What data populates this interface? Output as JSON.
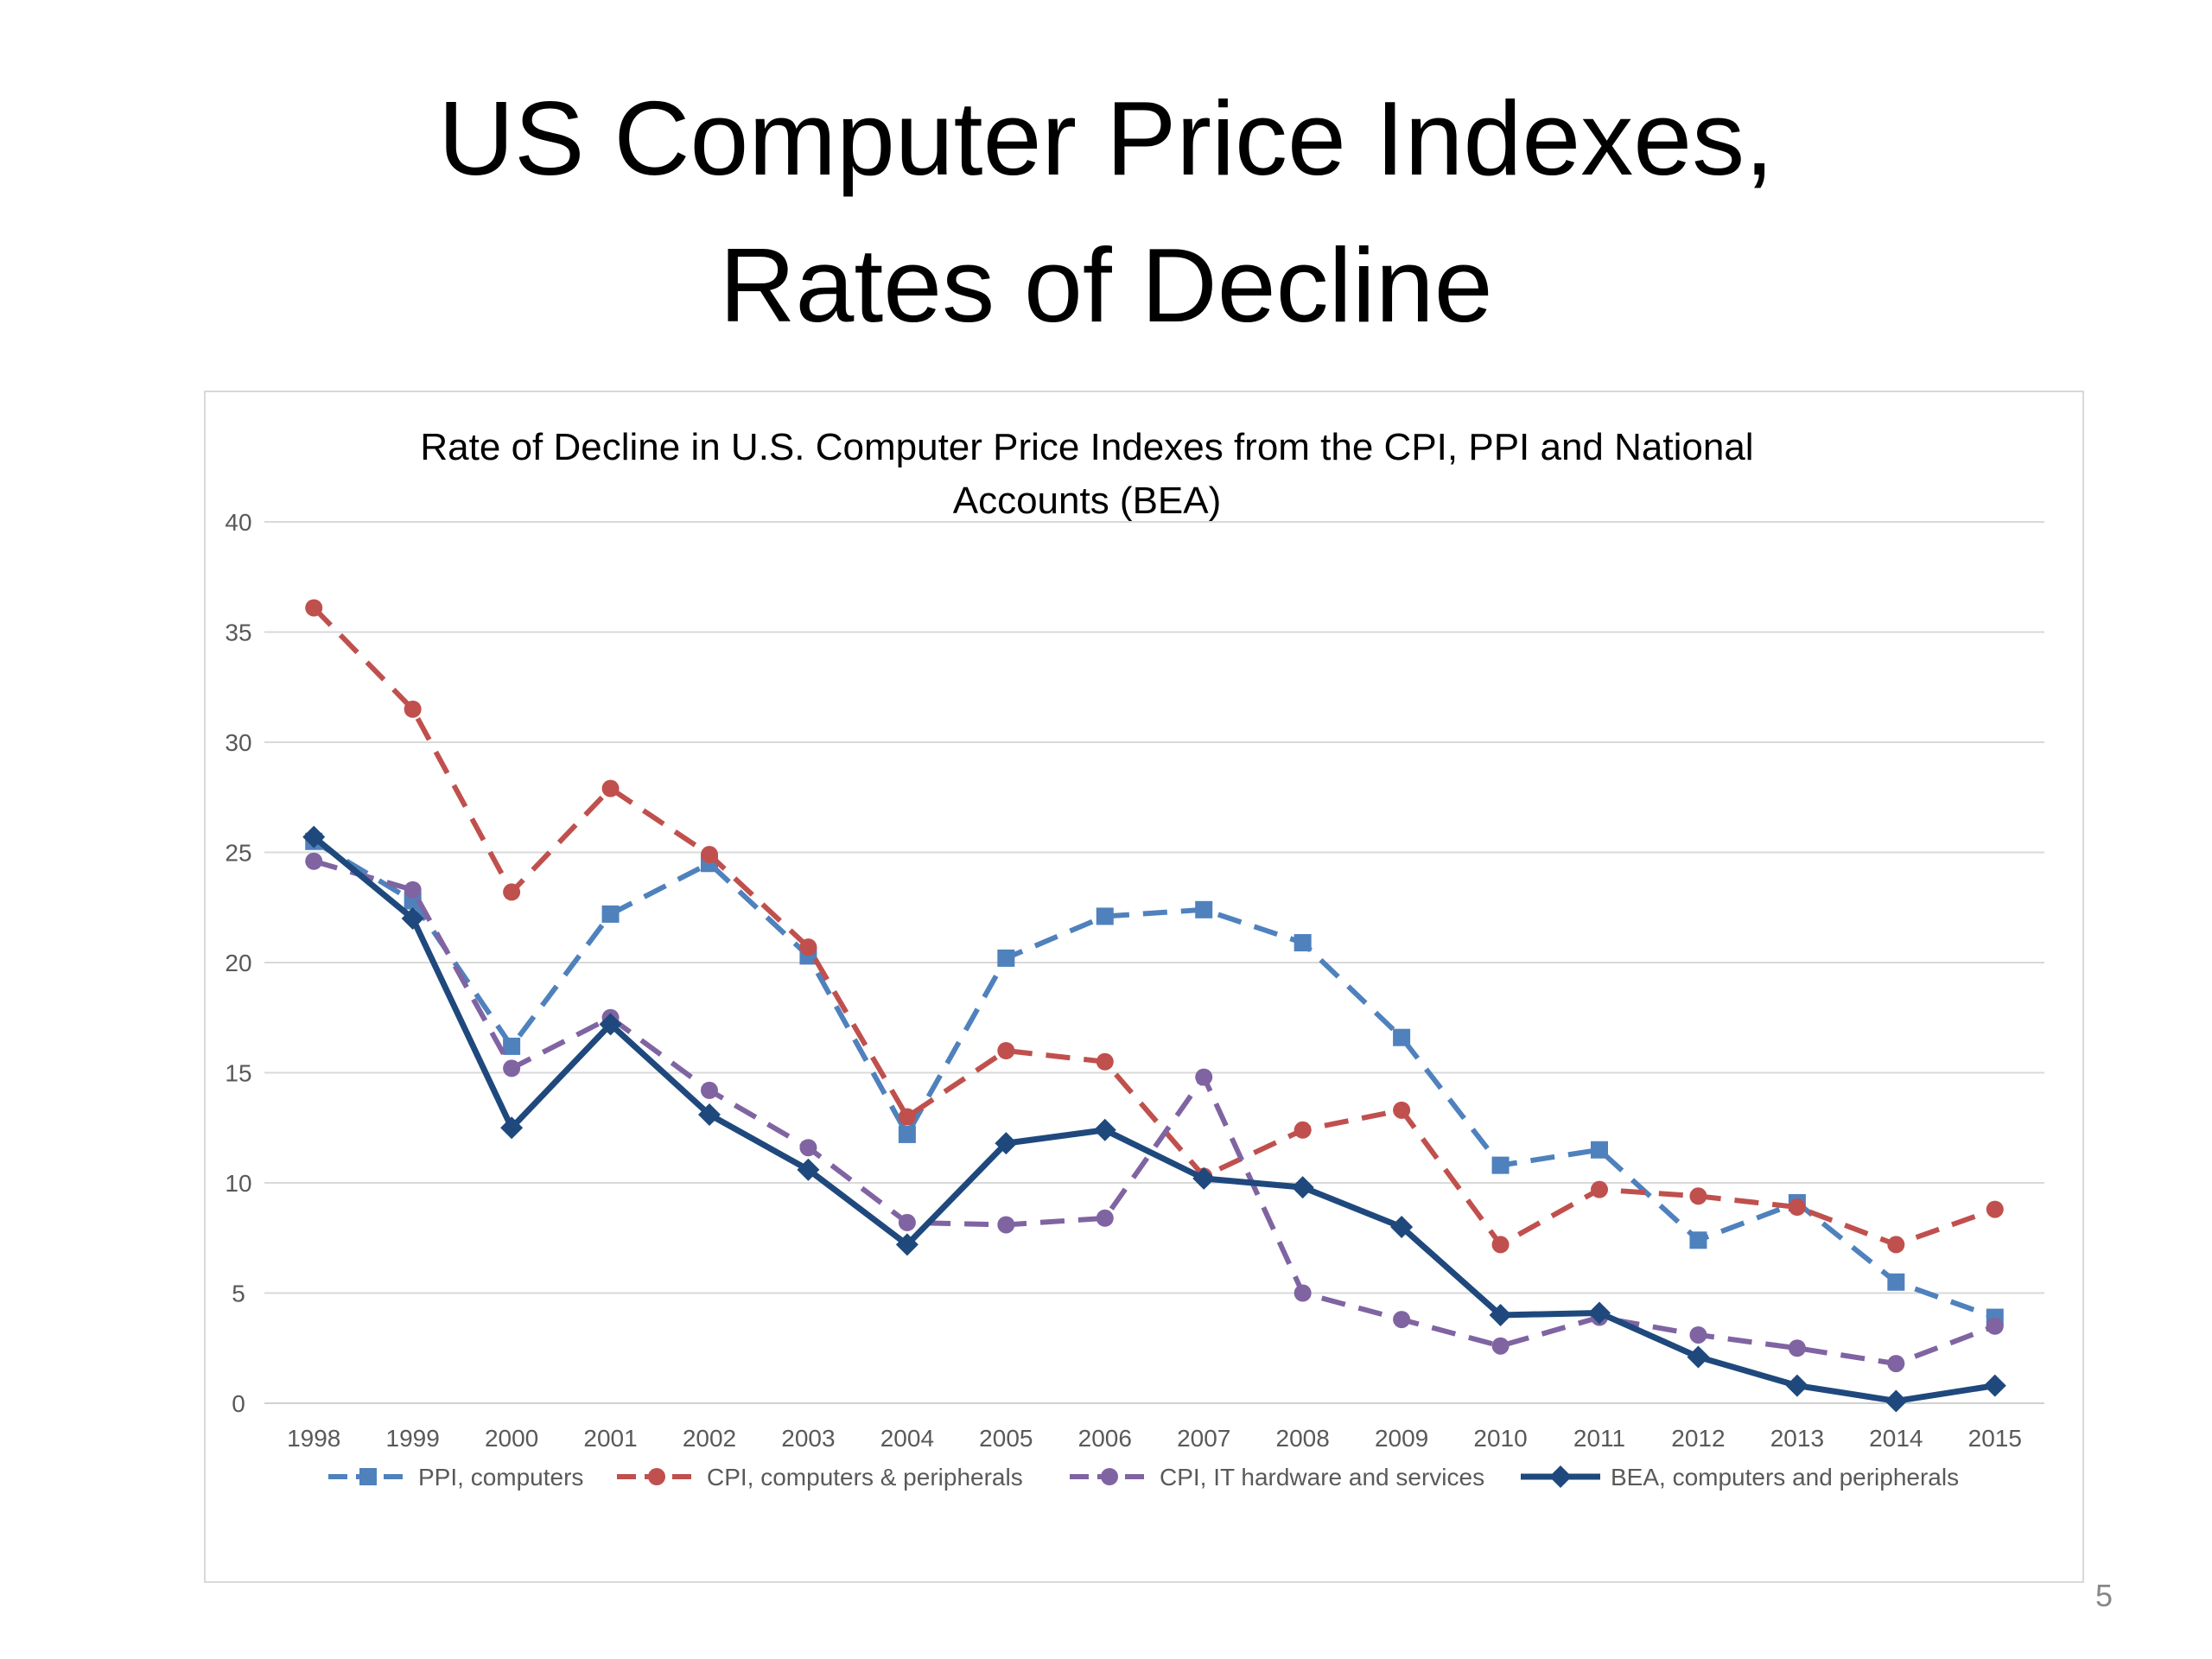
{
  "slide": {
    "title_line1": "US Computer Price Indexes,",
    "title_line2": "Rates of Decline",
    "page_number": "5"
  },
  "chart_data": {
    "type": "line",
    "title": "Rate of Decline in U.S. Computer Price Indexes from the CPI, PPI and National Accounts (BEA)",
    "title_lines": [
      "Rate of Decline in U.S. Computer Price Indexes from the CPI, PPI and National",
      "Accounts (BEA)"
    ],
    "xlabel": "",
    "ylabel": "",
    "categories": [
      "1998",
      "1999",
      "2000",
      "2001",
      "2002",
      "2003",
      "2004",
      "2005",
      "2006",
      "2007",
      "2008",
      "2009",
      "2010",
      "2011",
      "2012",
      "2013",
      "2014",
      "2015"
    ],
    "ylim": [
      0,
      40
    ],
    "yticks": [
      0,
      5,
      10,
      15,
      20,
      25,
      30,
      35,
      40
    ],
    "grid": true,
    "legend_position": "bottom",
    "series": [
      {
        "name": "PPI, computers",
        "color": "#4F81BD",
        "dash": "dashed",
        "marker": "square",
        "values": [
          25.5,
          22.8,
          16.2,
          22.2,
          24.5,
          20.3,
          12.2,
          20.2,
          22.1,
          22.4,
          20.9,
          16.6,
          10.8,
          11.5,
          7.4,
          9.1,
          5.5,
          3.9
        ]
      },
      {
        "name": "CPI, computers & peripherals",
        "color": "#C0504D",
        "dash": "dashed",
        "marker": "circle",
        "values": [
          36.1,
          31.5,
          23.2,
          27.9,
          24.9,
          20.7,
          13.0,
          16.0,
          15.5,
          10.3,
          12.4,
          13.3,
          7.2,
          9.7,
          9.4,
          8.9,
          7.2,
          8.8
        ]
      },
      {
        "name": "CPI, IT hardware and services",
        "color": "#8064A2",
        "dash": "dashed",
        "marker": "circle",
        "values": [
          24.6,
          23.3,
          15.2,
          17.5,
          14.2,
          11.6,
          8.2,
          8.1,
          8.4,
          14.8,
          5.0,
          3.8,
          2.6,
          3.9,
          3.1,
          2.5,
          1.8,
          3.5
        ]
      },
      {
        "name": "BEA, computers and peripherals",
        "color": "#1F497D",
        "dash": "solid",
        "marker": "diamond",
        "values": [
          25.7,
          22.0,
          12.5,
          17.2,
          13.1,
          10.6,
          7.2,
          11.8,
          12.4,
          10.2,
          9.8,
          8.0,
          4.0,
          4.1,
          2.1,
          0.8,
          0.1,
          0.8
        ]
      }
    ]
  }
}
